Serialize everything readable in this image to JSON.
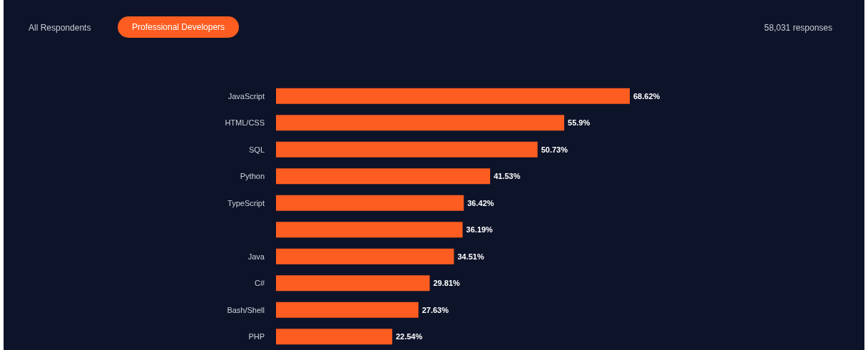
{
  "chart_data": {
    "type": "bar",
    "orientation": "horizontal",
    "categories": [
      "JavaScript",
      "HTML/CSS",
      "SQL",
      "Python",
      "TypeScript",
      null,
      "Java",
      "C#",
      "Bash/Shell",
      "PHP"
    ],
    "values": [
      68.62,
      55.9,
      50.73,
      41.53,
      36.42,
      36.19,
      34.51,
      29.81,
      27.63,
      22.54
    ],
    "value_labels": [
      "68.62%",
      "55.9%",
      "50.73%",
      "41.53%",
      "36.42%",
      "36.19%",
      "34.51%",
      "29.81%",
      "27.63%",
      "22.54%"
    ],
    "color": "#fd5d20",
    "annotations": [
      "All Respondents",
      "Professional Developers",
      "58,031 responses"
    ]
  }
}
